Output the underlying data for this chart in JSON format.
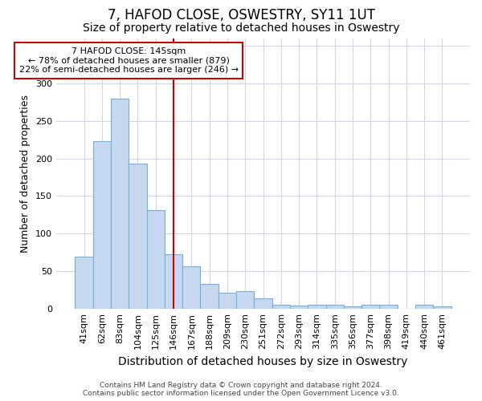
{
  "title": "7, HAFOD CLOSE, OSWESTRY, SY11 1UT",
  "subtitle": "Size of property relative to detached houses in Oswestry",
  "xlabel": "Distribution of detached houses by size in Oswestry",
  "ylabel": "Number of detached properties",
  "categories": [
    "41sqm",
    "62sqm",
    "83sqm",
    "104sqm",
    "125sqm",
    "146sqm",
    "167sqm",
    "188sqm",
    "209sqm",
    "230sqm",
    "251sqm",
    "272sqm",
    "293sqm",
    "314sqm",
    "335sqm",
    "356sqm",
    "377sqm",
    "398sqm",
    "419sqm",
    "440sqm",
    "461sqm"
  ],
  "values": [
    70,
    223,
    280,
    193,
    131,
    73,
    57,
    33,
    21,
    24,
    14,
    5,
    4,
    6,
    5,
    3,
    5,
    5,
    0,
    5,
    3
  ],
  "bar_color": "#c5d8f0",
  "bar_edge_color": "#7aadd4",
  "vline_index": 5,
  "vline_color": "#cc0000",
  "ylim": [
    0,
    360
  ],
  "yticks": [
    0,
    50,
    100,
    150,
    200,
    250,
    300,
    350
  ],
  "annotation_text": "7 HAFOD CLOSE: 145sqm\n← 78% of detached houses are smaller (879)\n22% of semi-detached houses are larger (246) →",
  "annotation_box_color": "#ffffff",
  "annotation_box_edge": "#cc0000",
  "footer_text": "Contains HM Land Registry data © Crown copyright and database right 2024.\nContains public sector information licensed under the Open Government Licence v3.0.",
  "bg_color": "#ffffff",
  "plot_bg_color": "#ffffff",
  "grid_color": "#d0d8e8",
  "title_fontsize": 12,
  "subtitle_fontsize": 10,
  "tick_fontsize": 8,
  "ylabel_fontsize": 9,
  "xlabel_fontsize": 10
}
